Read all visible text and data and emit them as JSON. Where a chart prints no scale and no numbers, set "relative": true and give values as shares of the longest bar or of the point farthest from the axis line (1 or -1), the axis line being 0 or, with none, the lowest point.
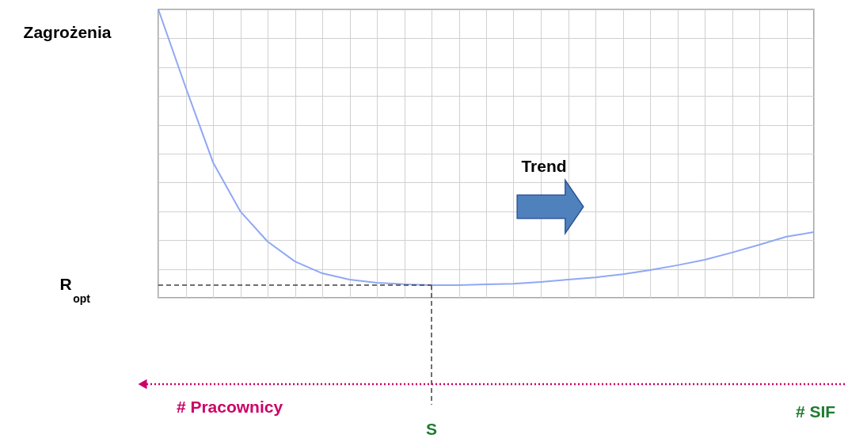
{
  "chart_data": {
    "type": "line",
    "relative": true,
    "ylabel": "Zagrożenia",
    "categories": [
      null,
      null,
      null,
      null,
      null,
      null,
      null,
      null,
      null,
      null,
      null,
      null,
      null,
      null,
      null,
      null,
      null,
      null,
      null,
      null,
      null,
      null,
      null,
      null,
      null
    ],
    "series": [
      {
        "color": "#8fa8f5",
        "values": [
          1.0,
          0.73,
          0.47,
          0.3,
          0.195,
          0.126,
          0.085,
          0.063,
          0.052,
          0.047,
          0.044,
          0.044,
          0.047,
          0.049,
          0.055,
          0.063,
          0.071,
          0.082,
          0.096,
          0.113,
          0.132,
          0.157,
          0.184,
          0.212,
          0.228
        ]
      }
    ],
    "ref_lines": [
      {
        "axis": "y",
        "value": 0.044,
        "line_style": "dashed",
        "color": "#404040"
      }
    ],
    "annotations": [
      "Trend",
      "# Pracownicy",
      "# SIF",
      "R$_{opt}$",
      "S"
    ],
    "grid": true,
    "tick_labels": false,
    "marker": "none",
    "line_style": "solid"
  }
}
